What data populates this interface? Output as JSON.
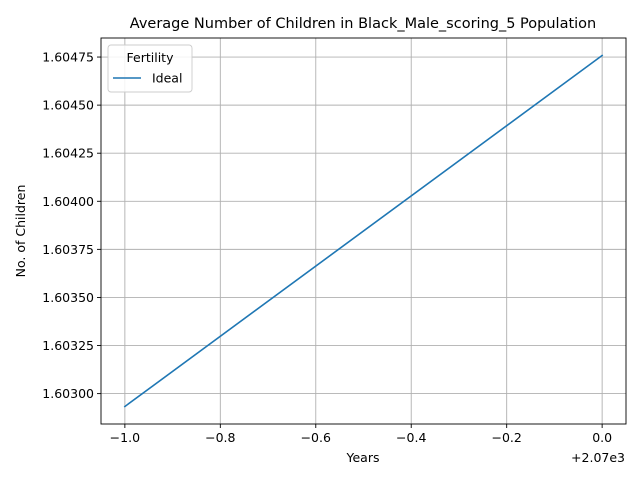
{
  "chart_data": {
    "type": "line",
    "title": "Average Number of Children in Black_Male_scoring_5 Population",
    "xlabel": "Years",
    "ylabel": "No. of Children",
    "x_offset_label": "+2.07e3",
    "xlim": [
      -1.05,
      0.05
    ],
    "ylim": [
      1.602842,
      1.604849
    ],
    "x_ticks": [
      -1.0,
      -0.8,
      -0.6,
      -0.4,
      -0.2,
      0.0
    ],
    "x_tick_labels": [
      "−1.0",
      "−0.8",
      "−0.6",
      "−0.4",
      "−0.2",
      "0.0"
    ],
    "y_ticks": [
      1.603,
      1.60325,
      1.6035,
      1.60375,
      1.604,
      1.60425,
      1.6045,
      1.60475
    ],
    "y_tick_labels": [
      "1.60300",
      "1.60325",
      "1.60350",
      "1.60375",
      "1.60400",
      "1.60425",
      "1.60450",
      "1.60475"
    ],
    "grid": true,
    "legend": {
      "title": "Fertility",
      "placement": "top-left"
    },
    "series": [
      {
        "name": "Ideal",
        "color": "#1f77b4",
        "x": [
          -1.0,
          0.0
        ],
        "y": [
          1.602933,
          1.604758
        ]
      }
    ]
  }
}
